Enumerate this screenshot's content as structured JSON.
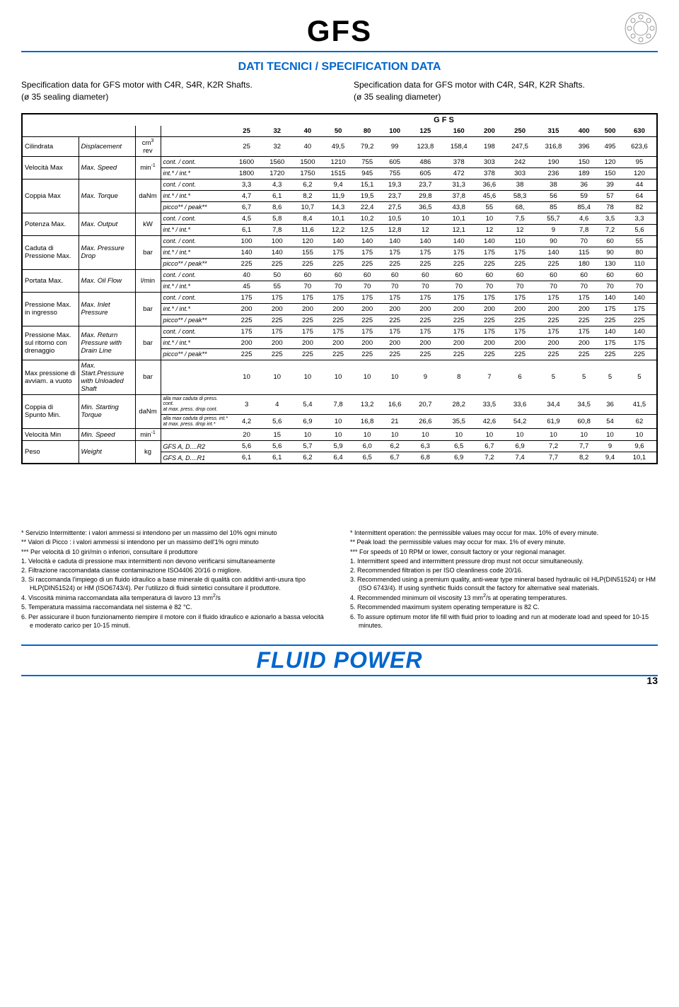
{
  "header": {
    "title": "GFS",
    "subtitle": "DATI TECNICI / SPECIFICATION DATA"
  },
  "spec_left": {
    "line1": "Specification data for GFS motor with C4R, S4R, K2R Shafts.",
    "line2": "(ø 35 sealing diameter)"
  },
  "spec_right": {
    "line1": "Specification data for GFS motor with C4R, S4R, K2R Shafts.",
    "line2": "(ø 35 sealing diameter)"
  },
  "gfs_label": "G F S",
  "sizes": [
    "25",
    "32",
    "40",
    "50",
    "80",
    "100",
    "125",
    "160",
    "200",
    "250",
    "315",
    "400",
    "500",
    "630"
  ],
  "params": [
    {
      "it": "Cilindrata",
      "en": "Displacement",
      "unit": "cm³\nrev",
      "conds": [
        ""
      ],
      "rows": [
        [
          "25",
          "32",
          "40",
          "49,5",
          "79,2",
          "99",
          "123,8",
          "158,4",
          "198",
          "247,5",
          "316,8",
          "396",
          "495",
          "623,6"
        ]
      ]
    },
    {
      "it": "Velocità Max",
      "en": "Max. Speed",
      "unit": "min⁻¹",
      "conds": [
        "cont. / cont.",
        "int.* / int.*"
      ],
      "rows": [
        [
          "1600",
          "1560",
          "1500",
          "1210",
          "755",
          "605",
          "486",
          "378",
          "303",
          "242",
          "190",
          "150",
          "120",
          "95"
        ],
        [
          "1800",
          "1720",
          "1750",
          "1515",
          "945",
          "755",
          "605",
          "472",
          "378",
          "303",
          "236",
          "189",
          "150",
          "120"
        ]
      ]
    },
    {
      "it": "Coppia Max",
      "en": "Max. Torque",
      "unit": "daNm",
      "conds": [
        "cont. / cont.",
        "int.* / int.*",
        "picco** / peak**"
      ],
      "rows": [
        [
          "3,3",
          "4,3",
          "6,2",
          "9,4",
          "15,1",
          "19,3",
          "23,7",
          "31,3",
          "36,6",
          "38",
          "38",
          "36",
          "39",
          "44"
        ],
        [
          "4,7",
          "6,1",
          "8,2",
          "11,9",
          "19,5",
          "23,7",
          "29,8",
          "37,8",
          "45,6",
          "58,3",
          "56",
          "59",
          "57",
          "64"
        ],
        [
          "6,7",
          "8,6",
          "10,7",
          "14,3",
          "22,4",
          "27,5",
          "36,5",
          "43,8",
          "55",
          "68,",
          "85",
          "85,4",
          "78",
          "82"
        ]
      ]
    },
    {
      "it": "Potenza Max.",
      "en": "Max. Output",
      "unit": "kW",
      "conds": [
        "cont. / cont.",
        "int.* / int.*"
      ],
      "rows": [
        [
          "4,5",
          "5,8",
          "8,4",
          "10,1",
          "10,2",
          "10,5",
          "10",
          "10,1",
          "10",
          "7,5",
          "55,7",
          "4,6",
          "3,5",
          "3,3"
        ],
        [
          "6,1",
          "7,8",
          "11,6",
          "12,2",
          "12,5",
          "12,8",
          "12",
          "12,1",
          "12",
          "12",
          "9",
          "7,8",
          "7,2",
          "5,6"
        ]
      ]
    },
    {
      "it": "Caduta di Pressione Max.",
      "en": "Max. Pressure Drop",
      "unit": "bar",
      "conds": [
        "cont. / cont.",
        "int.* / int.*",
        "picco** / peak**"
      ],
      "rows": [
        [
          "100",
          "100",
          "120",
          "140",
          "140",
          "140",
          "140",
          "140",
          "140",
          "110",
          "90",
          "70",
          "60",
          "55"
        ],
        [
          "140",
          "140",
          "155",
          "175",
          "175",
          "175",
          "175",
          "175",
          "175",
          "175",
          "140",
          "115",
          "90",
          "80"
        ],
        [
          "225",
          "225",
          "225",
          "225",
          "225",
          "225",
          "225",
          "225",
          "225",
          "225",
          "225",
          "180",
          "130",
          "110"
        ]
      ]
    },
    {
      "it": "Portata Max.",
      "en": "Max. Oil Flow",
      "unit": "l/min",
      "conds": [
        "cont. / cont.",
        "int.* / int.*"
      ],
      "rows": [
        [
          "40",
          "50",
          "60",
          "60",
          "60",
          "60",
          "60",
          "60",
          "60",
          "60",
          "60",
          "60",
          "60",
          "60"
        ],
        [
          "45",
          "55",
          "70",
          "70",
          "70",
          "70",
          "70",
          "70",
          "70",
          "70",
          "70",
          "70",
          "70",
          "70"
        ]
      ]
    },
    {
      "it": "Pressione Max. in ingresso",
      "en": "Max. Inlet Pressure",
      "unit": "bar",
      "conds": [
        "cont. / cont.",
        "int.* / int.*",
        "picco** / peak**"
      ],
      "rows": [
        [
          "175",
          "175",
          "175",
          "175",
          "175",
          "175",
          "175",
          "175",
          "175",
          "175",
          "175",
          "175",
          "140",
          "140"
        ],
        [
          "200",
          "200",
          "200",
          "200",
          "200",
          "200",
          "200",
          "200",
          "200",
          "200",
          "200",
          "200",
          "175",
          "175"
        ],
        [
          "225",
          "225",
          "225",
          "225",
          "225",
          "225",
          "225",
          "225",
          "225",
          "225",
          "225",
          "225",
          "225",
          "225"
        ]
      ]
    },
    {
      "it": "Pressione Max. sul ritorno con drenaggio",
      "en": "Max. Return Pressure with Drain Line",
      "unit": "bar",
      "conds": [
        "cont. / cont.",
        "int.* / int.*",
        "picco** / peak**"
      ],
      "rows": [
        [
          "175",
          "175",
          "175",
          "175",
          "175",
          "175",
          "175",
          "175",
          "175",
          "175",
          "175",
          "175",
          "140",
          "140"
        ],
        [
          "200",
          "200",
          "200",
          "200",
          "200",
          "200",
          "200",
          "200",
          "200",
          "200",
          "200",
          "200",
          "175",
          "175"
        ],
        [
          "225",
          "225",
          "225",
          "225",
          "225",
          "225",
          "225",
          "225",
          "225",
          "225",
          "225",
          "225",
          "225",
          "225"
        ]
      ]
    },
    {
      "it": "Max pressione di avviam. a vuoto",
      "en": "Max. Start.Pressure with Unloaded Shaft",
      "unit": "bar",
      "conds": [
        ""
      ],
      "rows": [
        [
          "10",
          "10",
          "10",
          "10",
          "10",
          "10",
          "9",
          "8",
          "7",
          "6",
          "5",
          "5",
          "5",
          "5"
        ]
      ]
    },
    {
      "it": "Coppia di Spunto Min.",
      "en": "Min. Starting Torque",
      "unit": "daNm",
      "conds": [
        "alla max caduta di press. cont.\nat max. press. drop cont.",
        "alla max caduta di press. int.*\nat max. press. drop int.*"
      ],
      "rows": [
        [
          "3",
          "4",
          "5,4",
          "7,8",
          "13,2",
          "16,6",
          "20,7",
          "28,2",
          "33,5",
          "33,6",
          "34,4",
          "34,5",
          "36",
          "41,5"
        ],
        [
          "4,2",
          "5,6",
          "6,9",
          "10",
          "16,8",
          "21",
          "26,6",
          "35,5",
          "42,6",
          "54,2",
          "61,9",
          "60,8",
          "54",
          "62"
        ]
      ]
    },
    {
      "it": "Velocità Min",
      "en": "Min. Speed",
      "unit": "min⁻¹",
      "conds": [
        ""
      ],
      "rows": [
        [
          "20",
          "15",
          "10",
          "10",
          "10",
          "10",
          "10",
          "10",
          "10",
          "10",
          "10",
          "10",
          "10",
          "10"
        ]
      ]
    },
    {
      "it": "Peso",
      "en": "Weight",
      "unit": "kg",
      "conds": [
        "GFS A, D....R2",
        "GFS A, D....R1"
      ],
      "rows": [
        [
          "5,6",
          "5,6",
          "5,7",
          "5,9",
          "6,0",
          "6,2",
          "6,3",
          "6,5",
          "6,7",
          "6,9",
          "7,2",
          "7,7",
          "9",
          "9,6"
        ],
        [
          "6,1",
          "6,1",
          "6,2",
          "6,4",
          "6,5",
          "6,7",
          "6,8",
          "6,9",
          "7,2",
          "7,4",
          "7,7",
          "8,2",
          "9,4",
          "10,1"
        ]
      ]
    }
  ],
  "footnotes_it": [
    "*   Servizio Intermittente: i valori ammessi si intendono per un massimo del 10% ogni minuto",
    "**  Valori di Picco : i valori ammessi si intendono per un massimo dell'1% ogni minuto",
    "*** Per velocità di 10 giri/min o inferiori, consultare il produttore",
    "1.  Velocità e caduta di pressione max intermittenti non devono verificarsi simultaneamente",
    "2.  Filtrazione raccomandata classe contaminazione ISO4406 20/16 o migliore.",
    "3.  Si raccomanda l'impiego di un fluido idraulico a base minerale di qualità con additivi anti-usura tipo HLP(DIN51524) or HM (ISO6743/4). Per l'utilizzo di fluidi sintetici consultare il produttore.",
    "4.  Viscosità minima raccomandata alla temperatura di lavoro 13 mm²/s",
    "5.  Temperatura massima raccomandata nel sistema è 82 °C.",
    "6.  Per assicurare il buon funzionamento riempire il motore con il fluido idraulico e azionarlo a bassa velocità e moderato carico per 10-15 minuti."
  ],
  "footnotes_en": [
    "*   Intermittent operation: the permissible values may occur for max. 10% of every minute.",
    "**  Peak load: the permissible values may occur for max. 1% of every minute.",
    "*** For speeds of 10 RPM or lower, consult factory or your regional manager.",
    "1.  Intermittent speed and intermittent pressure drop must not occur simultaneously.",
    "2.  Recommended filtration is per ISO cleanliness code 20/16.",
    "3.  Recommended using a premium quality, anti-wear type mineral based hydraulic oil HLP(DIN51524) or HM (ISO 6743/4). If using synthetic fluids consult the factory for alternative seal materials.",
    "4.  Recommended minimum oil viscosity 13 mm²/s at operating temperatures.",
    "5.  Recommended maximum system operating temperature is 82 C.",
    "6.  To assure optimum motor life fill with fluid prior to loading and run at moderate load and speed for 10-15 minutes."
  ],
  "footer": "FLUID POWER",
  "page_number": "13"
}
